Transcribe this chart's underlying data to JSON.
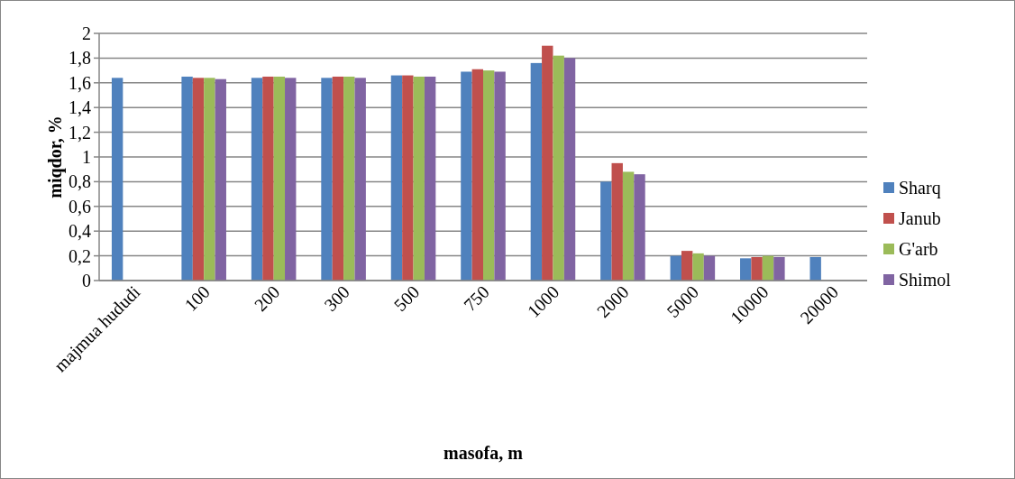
{
  "chart_data": {
    "type": "bar",
    "xlabel": "masofa, m",
    "ylabel": "miqdor, %",
    "categories": [
      "majmua hududi",
      "100",
      "200",
      "300",
      "500",
      "750",
      "1000",
      "2000",
      "5000",
      "10000",
      "20000"
    ],
    "series": [
      {
        "name": "Sharq",
        "color": "#4f81bd",
        "values": [
          1.64,
          1.65,
          1.64,
          1.64,
          1.66,
          1.69,
          1.76,
          0.8,
          0.2,
          0.18,
          0.19
        ]
      },
      {
        "name": "Janub",
        "color": "#c0504d",
        "values": [
          null,
          1.64,
          1.65,
          1.65,
          1.66,
          1.71,
          1.9,
          0.95,
          0.24,
          0.19,
          null
        ]
      },
      {
        "name": "G'arb",
        "color": "#9bbb59",
        "values": [
          null,
          1.64,
          1.65,
          1.65,
          1.65,
          1.7,
          1.82,
          0.88,
          0.22,
          0.2,
          null
        ]
      },
      {
        "name": "Shimol",
        "color": "#8064a2",
        "values": [
          null,
          1.63,
          1.64,
          1.64,
          1.65,
          1.69,
          1.8,
          0.86,
          0.2,
          0.19,
          null
        ]
      }
    ],
    "ylim": [
      0,
      2
    ],
    "yticks": [
      0,
      {
        "value": 0.2,
        "label": "0,2"
      },
      {
        "value": 0.4,
        "label": "0,4"
      },
      {
        "value": 0.6,
        "label": "0,6"
      },
      {
        "value": 0.8,
        "label": "0,8"
      },
      1,
      {
        "value": 1.2,
        "label": "1,2"
      },
      {
        "value": 1.4,
        "label": "1,4"
      },
      {
        "value": 1.6,
        "label": "1,6"
      },
      {
        "value": 1.8,
        "label": "1,8"
      },
      2
    ],
    "grid": "y",
    "legend": "right"
  }
}
